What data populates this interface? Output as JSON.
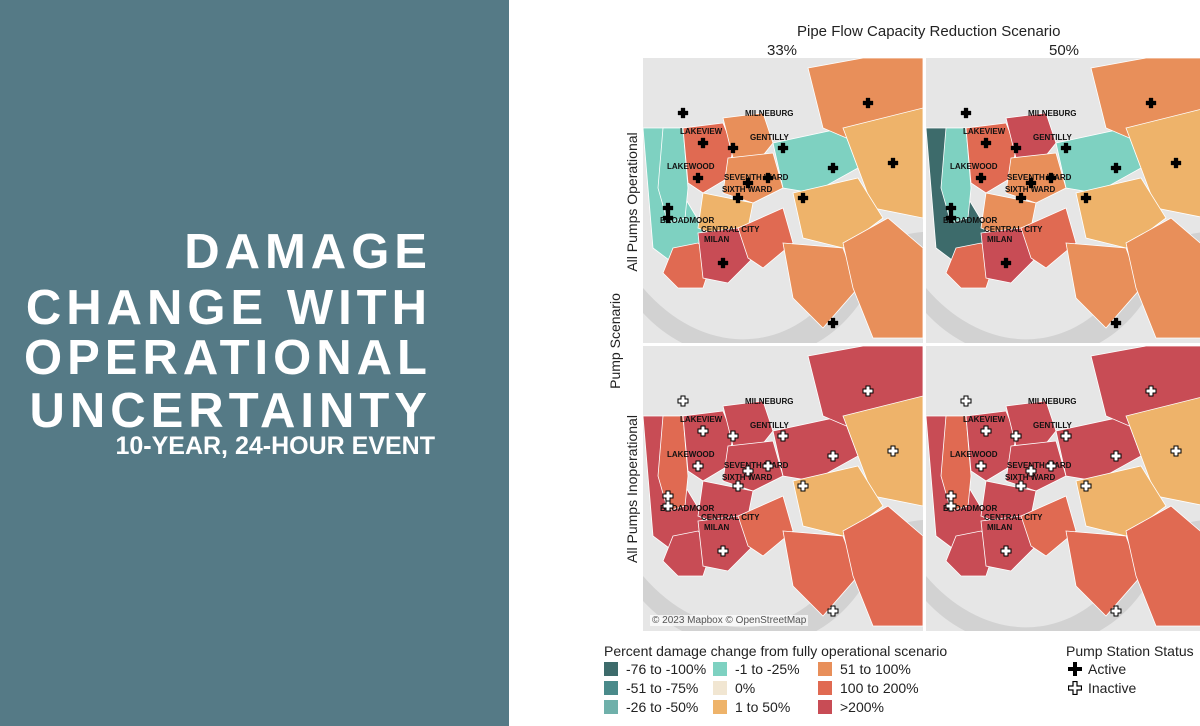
{
  "slide": {
    "title_lines": [
      "DAMAGE",
      "CHANGE WITH",
      "OPERATIONAL",
      "UNCERTAINTY"
    ],
    "subtitle": "10-YEAR, 24-HOUR EVENT"
  },
  "figure": {
    "column_header": "Pipe Flow Capacity Reduction Scenario",
    "columns": [
      "33%",
      "50%"
    ],
    "row_axis_label": "Pump Scenario",
    "rows": [
      "All Pumps Operational",
      "All Pumps Inoperational"
    ],
    "attribution": "© 2023 Mapbox © OpenStreetMap",
    "neighborhood_labels": [
      "MILNEBURG",
      "LAKEVIEW",
      "GENTILLY",
      "LAKEWOOD",
      "SEVENTH WARD",
      "SIXTH WARD",
      "BROADMOOR",
      "CENTRAL CITY",
      "MILAN"
    ]
  },
  "legend": {
    "title": "Percent damage change from fully operational scenario",
    "items": [
      {
        "label": "-76 to -100%",
        "color": "#3d6b6b"
      },
      {
        "label": "-51 to -75%",
        "color": "#4a8a8a"
      },
      {
        "label": "-26 to -50%",
        "color": "#6fb0aa"
      },
      {
        "label": "-1 to -25%",
        "color": "#7ed1c1"
      },
      {
        "label": "0%",
        "color": "#f1e6d2"
      },
      {
        "label": "1 to 50%",
        "color": "#eeb36a"
      },
      {
        "label": "51 to 100%",
        "color": "#e88f5a"
      },
      {
        "label": "100 to 200%",
        "color": "#e06a52"
      },
      {
        "label": ">200%",
        "color": "#c84c55"
      }
    ]
  },
  "pump_legend": {
    "title": "Pump Station Status",
    "active": "Active",
    "inactive": "Inactive"
  }
}
